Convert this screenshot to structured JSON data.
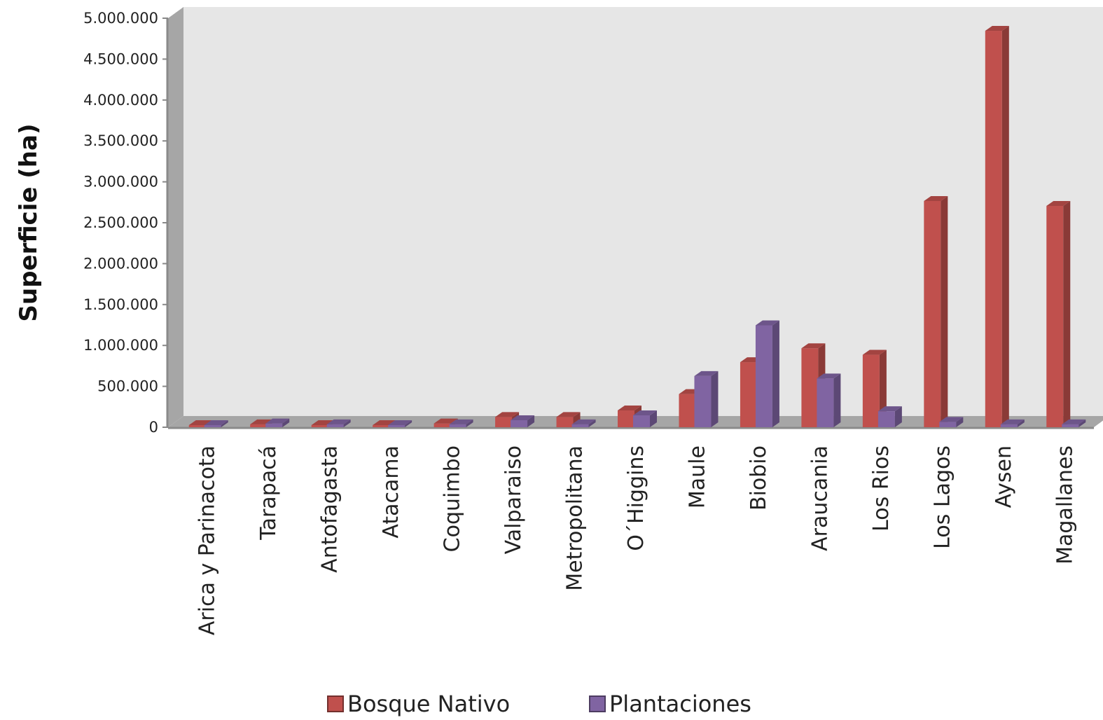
{
  "chart_data": {
    "type": "bar",
    "title": "",
    "xlabel": "",
    "ylabel": "Superficie (ha)",
    "ylim": [
      0,
      5000000
    ],
    "ytick_labels": [
      "0",
      "500.000",
      "1.000.000",
      "1.500.000",
      "2.000.000",
      "2.500.000",
      "3.000.000",
      "3.500.000",
      "4.000.000",
      "4.500.000",
      "5.000.000"
    ],
    "ytick_values": [
      0,
      500000,
      1000000,
      1500000,
      2000000,
      2500000,
      3000000,
      3500000,
      4000000,
      4500000,
      5000000
    ],
    "categories": [
      "Arica y Parinacota",
      "Tarapacá",
      "Antofagasta",
      "Atacama",
      "Coquimbo",
      "Valparaiso",
      "Metropolitana",
      "O´Higgins",
      "Maule",
      "Biobio",
      "Araucania",
      "Los Rios",
      "Los Lagos",
      "Aysen",
      "Magallanes"
    ],
    "series": [
      {
        "name": "Bosque Nativo",
        "color": "#c0504d",
        "values": [
          0,
          10000,
          0,
          0,
          20000,
          100000,
          100000,
          180000,
          380000,
          770000,
          940000,
          860000,
          2740000,
          4820000,
          2680000
        ]
      },
      {
        "name": "Plantaciones",
        "color": "#8064a2",
        "values": [
          0,
          20000,
          10000,
          0,
          10000,
          60000,
          10000,
          120000,
          600000,
          1220000,
          570000,
          170000,
          40000,
          10000,
          10000
        ]
      }
    ],
    "grid": false,
    "legend": "bottom",
    "style": "3d-clustered-column"
  }
}
